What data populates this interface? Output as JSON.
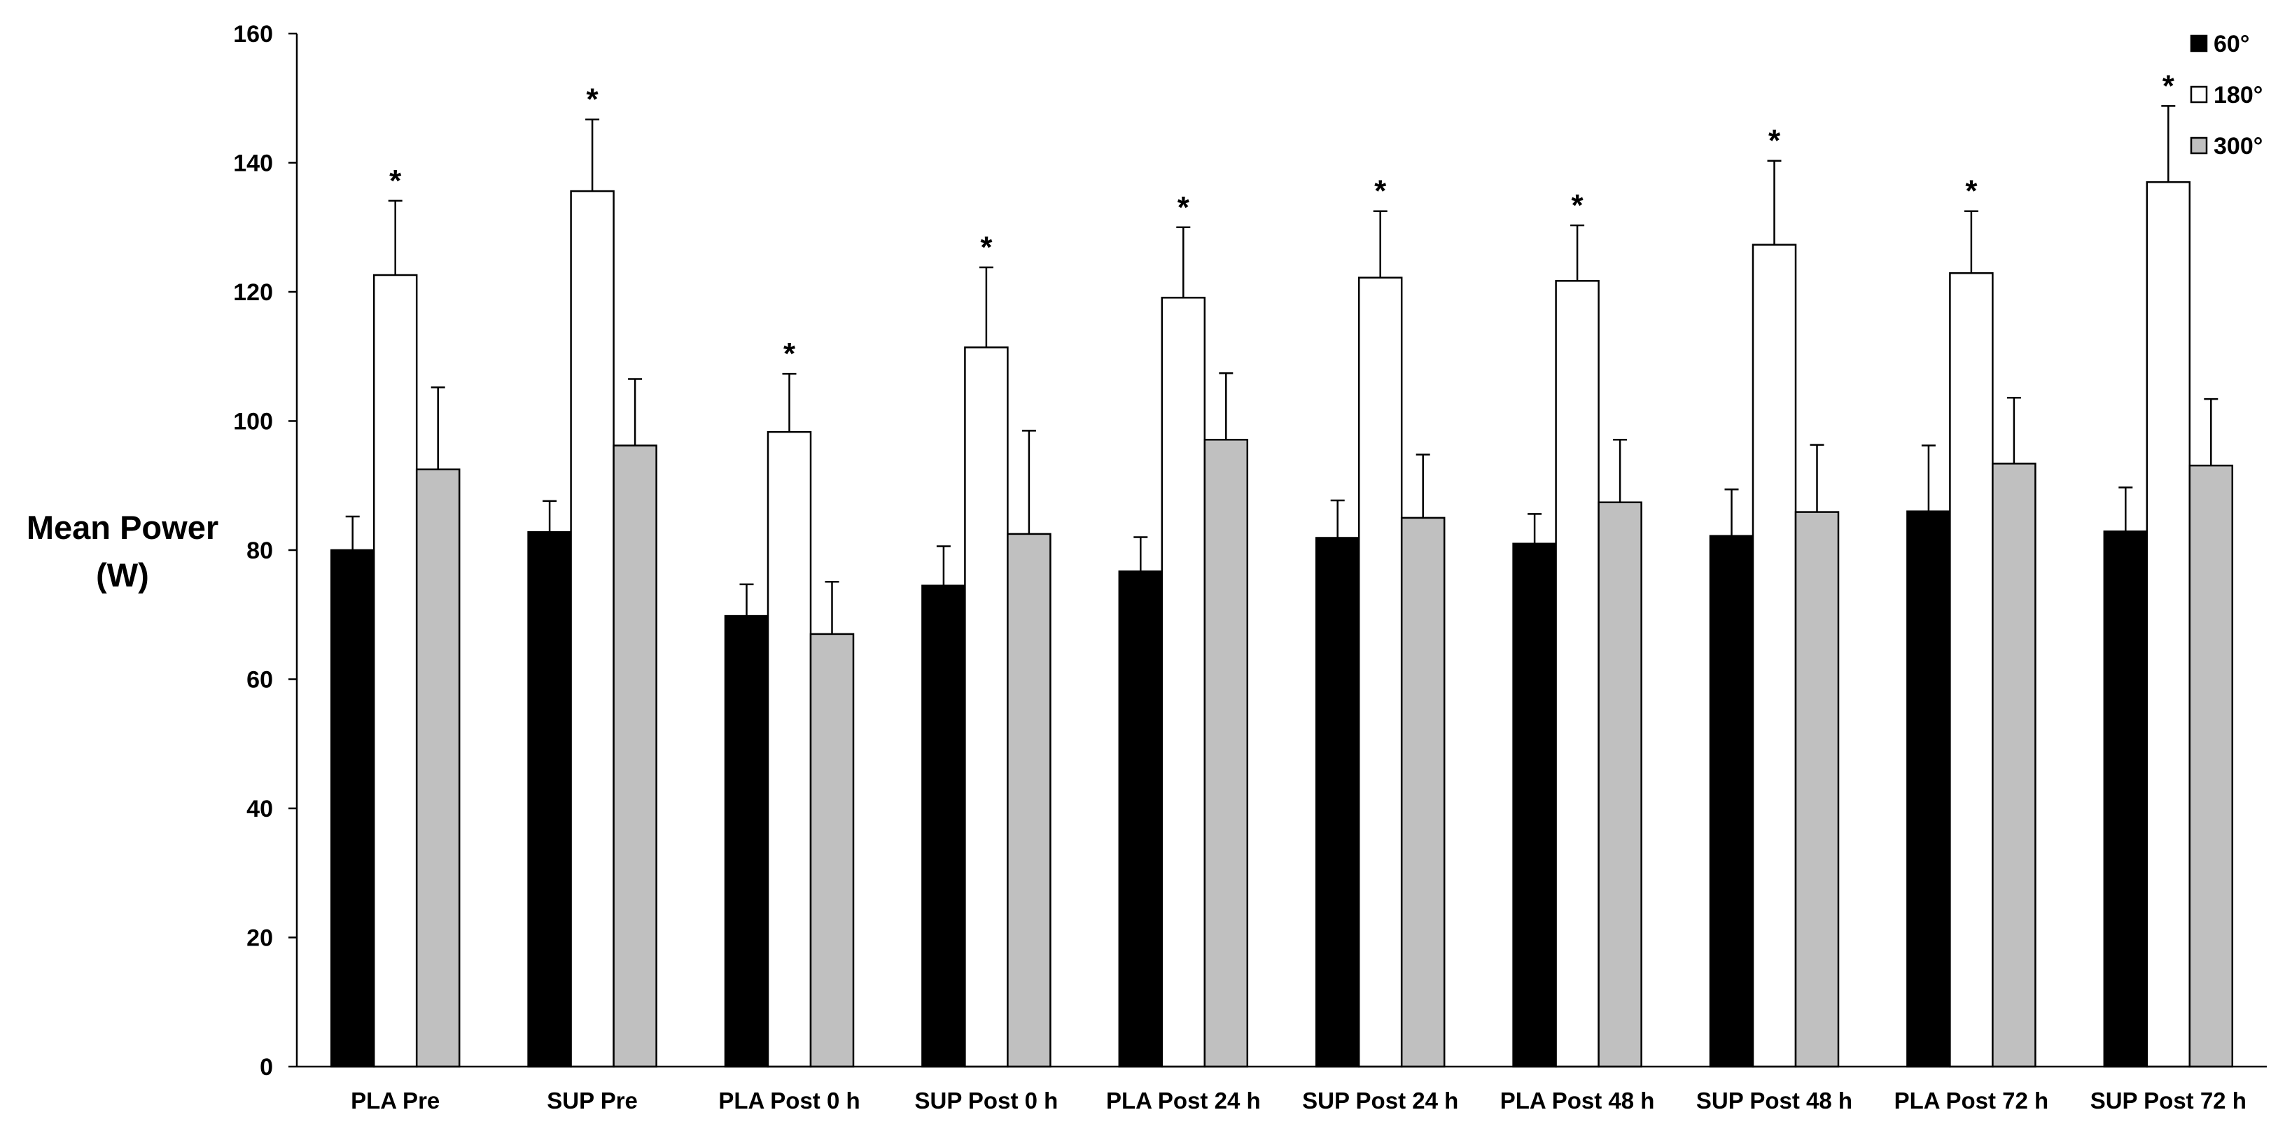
{
  "chart_data": {
    "type": "bar",
    "title": "",
    "xlabel": "",
    "ylabel_lines": [
      "Mean Power",
      "(W)"
    ],
    "ylim": [
      0,
      160
    ],
    "yticks": [
      0,
      20,
      40,
      60,
      80,
      100,
      120,
      140,
      160
    ],
    "grid": false,
    "legend_position": "top-right",
    "significance_marker": "*",
    "categories": [
      "PLA Pre",
      "SUP Pre",
      "PLA Post 0 h",
      "SUP Post 0 h",
      "PLA Post 24 h",
      "SUP Post 24 h",
      "PLA Post 48 h",
      "SUP Post 48 h",
      "PLA Post 72 h",
      "SUP Post 72 h"
    ],
    "series": [
      {
        "name": "60°",
        "color": "#000000",
        "values": [
          80,
          82.8,
          69.8,
          74.5,
          76.7,
          81.9,
          81.0,
          82.2,
          86.0,
          82.9
        ],
        "errors": [
          5.2,
          4.8,
          4.9,
          6.1,
          5.3,
          5.8,
          4.6,
          7.2,
          10.2,
          6.8
        ]
      },
      {
        "name": "180°",
        "color": "#ffffff",
        "values": [
          122.6,
          135.6,
          98.3,
          111.4,
          119.1,
          122.2,
          121.7,
          127.3,
          122.9,
          137.0
        ],
        "errors": [
          11.5,
          11.1,
          9.0,
          12.4,
          10.9,
          10.3,
          8.6,
          13.0,
          9.6,
          11.8
        ]
      },
      {
        "name": "300°",
        "color": "#c0c0c0",
        "values": [
          92.5,
          96.2,
          67.0,
          82.5,
          97.1,
          85.0,
          87.4,
          85.9,
          93.4,
          93.1
        ],
        "errors": [
          12.7,
          10.3,
          8.1,
          16.0,
          10.3,
          9.8,
          9.7,
          10.4,
          10.2,
          10.3
        ]
      }
    ],
    "significant_series": "180°",
    "significant_categories": [
      "PLA Pre",
      "SUP Pre",
      "PLA Post 0 h",
      "SUP Post 0 h",
      "PLA Post 24 h",
      "SUP Post 24 h",
      "PLA Post 48 h",
      "SUP Post 48 h",
      "PLA Post 72 h",
      "SUP Post 72 h"
    ]
  }
}
